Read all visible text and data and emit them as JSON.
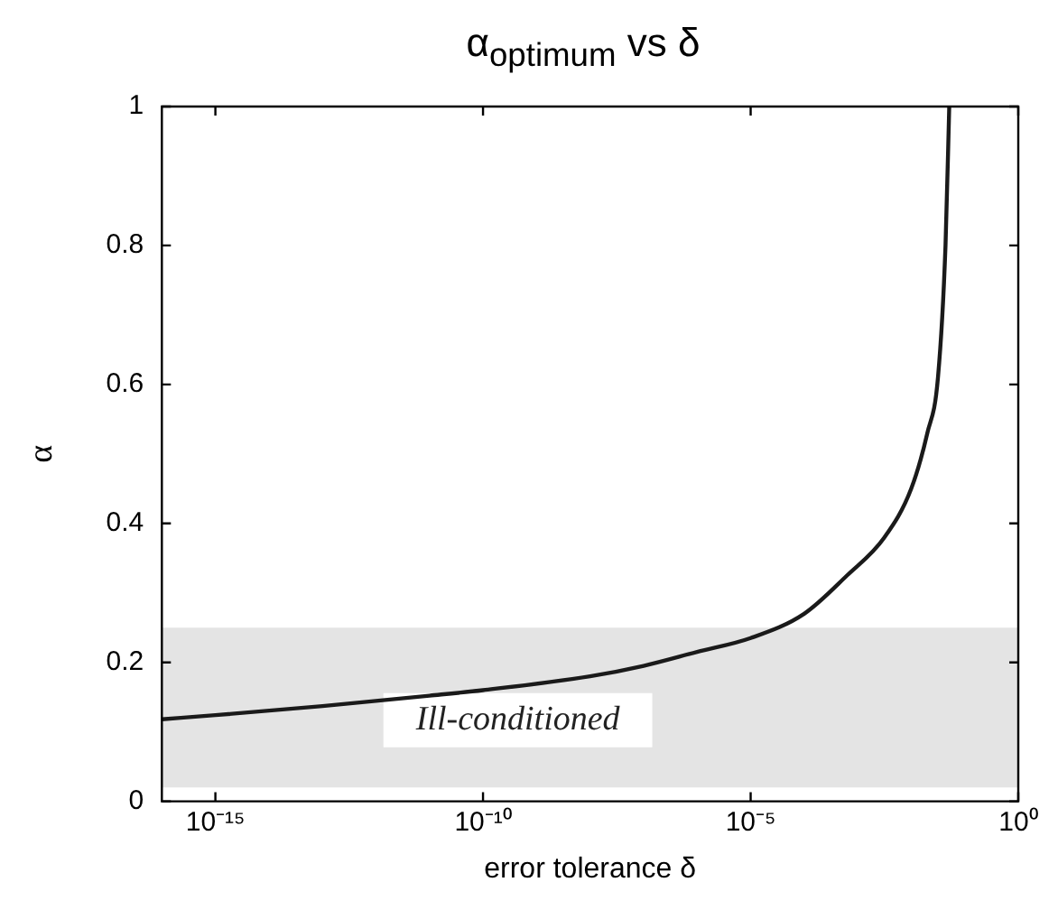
{
  "chart_data": {
    "type": "line",
    "title": "α$_{optimum}$ vs δ",
    "xlabel": "error tolerance δ",
    "ylabel": "α",
    "log": "x",
    "x": [
      1e-16,
      1e-15,
      1e-13,
      1e-11,
      1e-10,
      1e-08,
      1e-07,
      1e-06,
      1e-05,
      0.0001,
      0.00063,
      0.00316,
      0.01,
      0.02,
      0.0316,
      0.0437,
      0.0513
    ],
    "series": [
      {
        "color": "#1a1a1a",
        "values": [
          0.118,
          0.124,
          0.137,
          0.152,
          0.16,
          0.18,
          0.195,
          0.215,
          0.235,
          0.27,
          0.325,
          0.38,
          0.45,
          0.53,
          0.61,
          0.8,
          1
        ]
      }
    ],
    "xlim": [
      1e-16,
      1
    ],
    "ylim": [
      0,
      1
    ],
    "xticks": [
      {
        "value": 1e-15,
        "label": "10⁻¹⁵"
      },
      {
        "value": 1e-10,
        "label": "10⁻¹⁰"
      },
      {
        "value": 1e-05,
        "label": "10⁻⁵"
      },
      {
        "value": 1,
        "label": "10⁰"
      }
    ],
    "yticks": [
      0,
      0.2,
      0.4,
      0.6,
      0.8,
      1
    ],
    "bands": [
      {
        "axis": "y",
        "from": 0.02,
        "to": 0.25,
        "label": "Ill-conditioned",
        "color": "#e4e4e4"
      }
    ],
    "grid": false,
    "legend": false,
    "marker": "none",
    "line_style": "solid"
  }
}
